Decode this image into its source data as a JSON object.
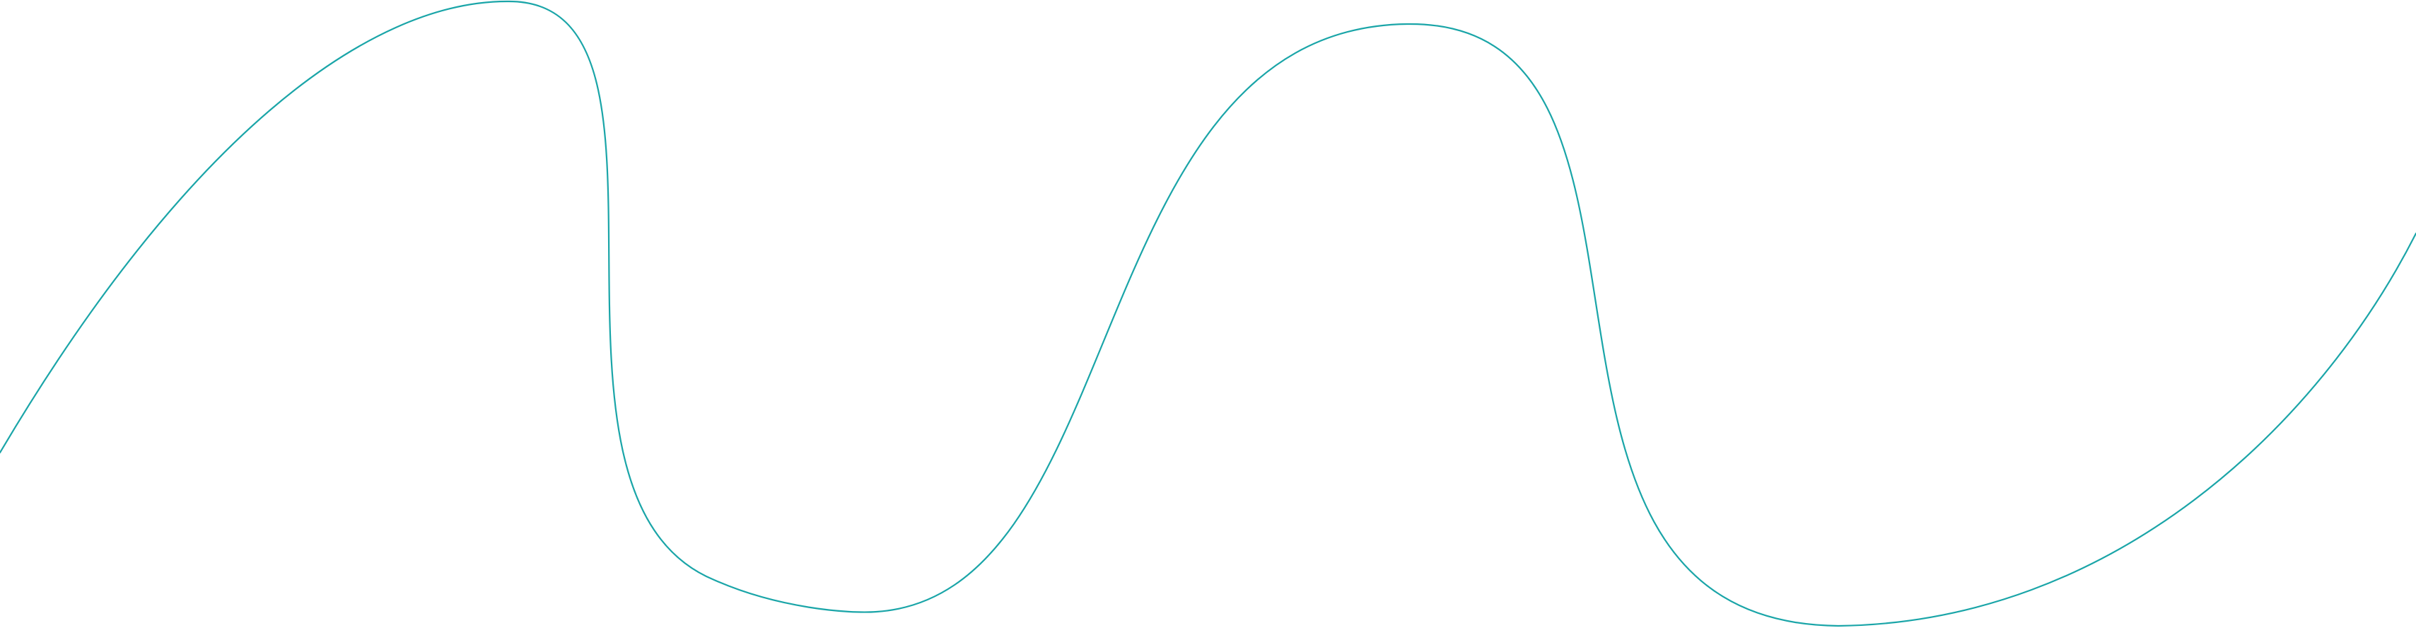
{
  "decoration": {
    "wave_line": {
      "shape": "smooth wavy line",
      "color": "#1aa5a8"
    }
  }
}
